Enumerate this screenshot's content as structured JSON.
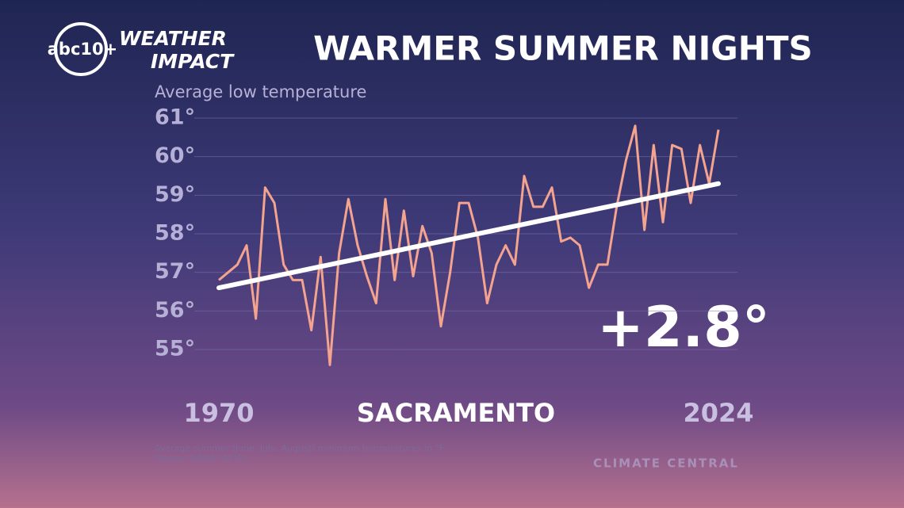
{
  "logo": {
    "station": "abc10+",
    "line1": "WEATHER",
    "line2": "IMPACT"
  },
  "chart_data": {
    "type": "line",
    "title": "WARMER SUMMER NIGHTS",
    "y_label": "Average low temperature",
    "location": "SACRAMENTO",
    "annotation": "+2.8°",
    "footnote": "Average summer (June, July, August) minimum temperatures in °F",
    "source": "Source: NOAA (ACIS)",
    "credit": "CLIMATE CENTRAL",
    "x": [
      1970,
      1971,
      1972,
      1973,
      1974,
      1975,
      1976,
      1977,
      1978,
      1979,
      1980,
      1981,
      1982,
      1983,
      1984,
      1985,
      1986,
      1987,
      1988,
      1989,
      1990,
      1991,
      1992,
      1993,
      1994,
      1995,
      1996,
      1997,
      1998,
      1999,
      2000,
      2001,
      2002,
      2003,
      2004,
      2005,
      2006,
      2007,
      2008,
      2009,
      2010,
      2011,
      2012,
      2013,
      2014,
      2015,
      2016,
      2017,
      2018,
      2019,
      2020,
      2021,
      2022,
      2023,
      2024
    ],
    "series": [
      {
        "color": "#f4a38f",
        "values": [
          56.8,
          57.0,
          57.2,
          57.7,
          55.8,
          59.2,
          58.8,
          57.2,
          56.8,
          56.8,
          55.5,
          57.4,
          54.6,
          57.5,
          58.9,
          57.7,
          56.9,
          56.2,
          58.9,
          56.8,
          58.6,
          56.9,
          58.2,
          57.5,
          55.6,
          57.0,
          58.8,
          58.8,
          57.9,
          56.2,
          57.2,
          57.7,
          57.2,
          59.5,
          58.7,
          58.7,
          59.2,
          57.8,
          57.9,
          57.7,
          56.6,
          57.2,
          57.2,
          58.7,
          59.9,
          60.8,
          58.1,
          60.3,
          58.3,
          60.3,
          60.2,
          58.8,
          60.3,
          59.3,
          60.7
        ]
      }
    ],
    "trend": {
      "color": "#ffffff",
      "x": [
        1970,
        2024
      ],
      "values": [
        56.6,
        59.3
      ]
    },
    "xlim": [
      1970,
      2024
    ],
    "xticks": [
      1970,
      2024
    ],
    "ylim": [
      54.5,
      61
    ],
    "yticks": [
      {
        "value": 55,
        "label": "55°"
      },
      {
        "value": 56,
        "label": "56°"
      },
      {
        "value": 57,
        "label": "57°"
      },
      {
        "value": 58,
        "label": "58°"
      },
      {
        "value": 59,
        "label": "59°"
      },
      {
        "value": 60,
        "label": "60°"
      },
      {
        "value": 61,
        "label": "61°"
      }
    ],
    "grid": true
  }
}
